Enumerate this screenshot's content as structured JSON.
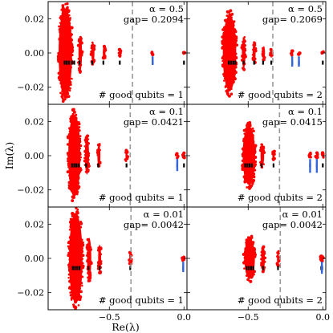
{
  "figure": {
    "ylabel": "Im(λ)",
    "xlabel": "Re(λ)"
  },
  "chart_data": [
    {
      "panel": "alpha-0.5-good-1",
      "type": "scatter",
      "alpha_text": "α = 0.5",
      "gap_text": "gap= 0.2094",
      "good_text": "# good qubits = 1",
      "gap_line_x": -0.345,
      "clusters": [
        {
          "cx": -0.795,
          "hw": 0.045,
          "hh": 0.026
        },
        {
          "cx": -0.695,
          "hw": 0.012,
          "hh": 0.01
        },
        {
          "cx": -0.61,
          "hw": 0.01,
          "hh": 0.006
        },
        {
          "cx": -0.535,
          "hw": 0.009,
          "hh": 0.004
        },
        {
          "cx": -0.43,
          "hw": 0.004,
          "hh": 0.002
        },
        {
          "cx": -0.21,
          "hw": 0.003,
          "hh": 0.0012
        },
        {
          "cx": 0.0,
          "hw": 0.002,
          "hh": 0.0006
        }
      ],
      "black_x": [
        -0.8,
        -0.785,
        -0.77,
        -0.75,
        -0.735,
        -0.7,
        -0.615,
        -0.54,
        -0.43,
        -0.21,
        0.0
      ],
      "blue": [
        {
          "x": -0.21,
          "y0": -0.007,
          "y1": -0.002
        }
      ]
    },
    {
      "panel": "alpha-0.5-good-2",
      "type": "scatter",
      "alpha_text": "α = 0.5",
      "gap_text": "gap= 0.2069",
      "good_text": "# good qubits = 2",
      "gap_line_x": -0.335,
      "clusters": [
        {
          "cx": -0.625,
          "hw": 0.045,
          "hh": 0.022
        },
        {
          "cx": -0.53,
          "hw": 0.012,
          "hh": 0.009
        },
        {
          "cx": -0.46,
          "hw": 0.01,
          "hh": 0.006
        },
        {
          "cx": -0.395,
          "hw": 0.008,
          "hh": 0.004
        },
        {
          "cx": -0.345,
          "hw": 0.006,
          "hh": 0.002
        },
        {
          "cx": -0.205,
          "hw": 0.005,
          "hh": 0.0012
        },
        {
          "cx": -0.16,
          "hw": 0.003,
          "hh": 0.0008
        },
        {
          "cx": 0.0,
          "hw": 0.002,
          "hh": 0.0006
        }
      ],
      "black_x": [
        -0.63,
        -0.615,
        -0.6,
        -0.585,
        -0.53,
        -0.46,
        -0.4,
        -0.345,
        -0.205,
        -0.16,
        0.0
      ],
      "blue": [
        {
          "x": -0.205,
          "y0": -0.008,
          "y1": -0.002
        },
        {
          "x": -0.16,
          "y0": -0.008,
          "y1": -0.002
        }
      ]
    },
    {
      "panel": "alpha-0.1-good-1",
      "type": "scatter",
      "alpha_text": "α = 0.1",
      "gap_text": "gap= 0.0421",
      "good_text": "# good qubits = 1",
      "gap_line_x": -0.36,
      "clusters": [
        {
          "cx": -0.735,
          "hw": 0.04,
          "hh": 0.024
        },
        {
          "cx": -0.65,
          "hw": 0.014,
          "hh": 0.011
        },
        {
          "cx": -0.57,
          "hw": 0.01,
          "hh": 0.007
        },
        {
          "cx": -0.385,
          "hw": 0.007,
          "hh": 0.003
        },
        {
          "cx": -0.045,
          "hw": 0.003,
          "hh": 0.0015
        },
        {
          "cx": 0.0,
          "hw": 0.002,
          "hh": 0.0015
        }
      ],
      "black_x": [
        -0.75,
        -0.735,
        -0.72,
        -0.705,
        -0.655,
        -0.575,
        -0.385,
        -0.045,
        0.0
      ],
      "blue": [
        {
          "x": -0.045,
          "y0": -0.009,
          "y1": -0.002
        }
      ]
    },
    {
      "panel": "alpha-0.1-good-2",
      "type": "scatter",
      "alpha_text": "α = 0.1",
      "gap_text": "gap= 0.0415",
      "good_text": "# good qubits = 2",
      "gap_line_x": -0.29,
      "clusters": [
        {
          "cx": -0.495,
          "hw": 0.042,
          "hh": 0.017
        },
        {
          "cx": -0.405,
          "hw": 0.012,
          "hh": 0.006
        },
        {
          "cx": -0.33,
          "hw": 0.008,
          "hh": 0.003
        },
        {
          "cx": -0.085,
          "hw": 0.003,
          "hh": 0.0015
        },
        {
          "cx": -0.04,
          "hw": 0.003,
          "hh": 0.0015
        },
        {
          "cx": 0.0,
          "hw": 0.002,
          "hh": 0.0015
        }
      ],
      "black_x": [
        -0.52,
        -0.505,
        -0.49,
        -0.475,
        -0.41,
        -0.33,
        -0.085,
        -0.04,
        0.0
      ],
      "blue": [
        {
          "x": -0.085,
          "y0": -0.01,
          "y1": -0.002
        },
        {
          "x": -0.04,
          "y0": -0.01,
          "y1": -0.002
        }
      ]
    },
    {
      "panel": "alpha-0.01-good-1",
      "type": "scatter",
      "alpha_text": "α = 0.01",
      "gap_text": "gap= 0.0042",
      "good_text": "# good qubits = 1",
      "gap_line_x": -0.355,
      "clusters": [
        {
          "cx": -0.725,
          "hw": 0.045,
          "hh": 0.026
        },
        {
          "cx": -0.635,
          "hw": 0.014,
          "hh": 0.012
        },
        {
          "cx": -0.565,
          "hw": 0.01,
          "hh": 0.008
        },
        {
          "cx": -0.36,
          "hw": 0.006,
          "hh": 0.004
        },
        {
          "cx": -0.005,
          "hw": 0.003,
          "hh": 0.0015
        }
      ],
      "black_x": [
        -0.745,
        -0.73,
        -0.715,
        -0.7,
        -0.64,
        -0.565,
        -0.36,
        -0.005
      ],
      "blue": [
        {
          "x": -0.005,
          "y0": -0.008,
          "y1": -0.002
        }
      ]
    },
    {
      "panel": "alpha-0.01-good-2",
      "type": "scatter",
      "alpha_text": "α = 0.01",
      "gap_text": "gap= 0.0042",
      "good_text": "# good qubits = 2",
      "gap_line_x": -0.285,
      "clusters": [
        {
          "cx": -0.49,
          "hw": 0.035,
          "hh": 0.012
        },
        {
          "cx": -0.4,
          "hw": 0.012,
          "hh": 0.007
        },
        {
          "cx": -0.3,
          "hw": 0.007,
          "hh": 0.004
        },
        {
          "cx": -0.01,
          "hw": 0.003,
          "hh": 0.0015
        },
        {
          "cx": -0.004,
          "hw": 0.002,
          "hh": 0.0015
        }
      ],
      "black_x": [
        -0.51,
        -0.495,
        -0.48,
        -0.465,
        -0.4,
        -0.3,
        -0.01,
        -0.004
      ],
      "blue": [
        {
          "x": -0.006,
          "y0": -0.009,
          "y1": -0.002
        }
      ]
    }
  ],
  "axes": {
    "xlim": [
      -0.91,
      0.02
    ],
    "ylim": [
      -0.03,
      0.03
    ],
    "yticks": [
      0.02,
      0.0,
      -0.02
    ],
    "ytick_labels": [
      "0.02",
      "0.00",
      "−0.02"
    ],
    "xticks": [
      -0.5,
      0.0
    ],
    "xtick_labels": [
      "−0.5",
      "0.0"
    ]
  },
  "colors": {
    "eigen": "#ff0000",
    "black_marks": "#000000",
    "blue_marks": "#3366dd",
    "gap_line": "#999999"
  }
}
